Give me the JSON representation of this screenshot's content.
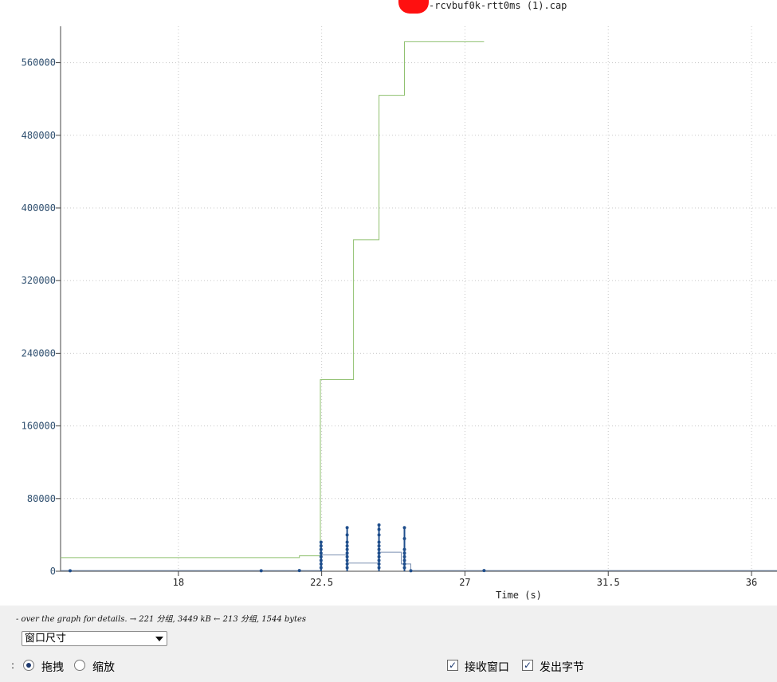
{
  "title_suffix": "-rcvbuf0k-rtt0ms (1).cap",
  "colors": {
    "cumulative": "#8fc06f",
    "window": "#7a8fb0",
    "points": "#1f4e8c",
    "grid": "#c8c8c8",
    "tick_label": "#2f4f6f",
    "background": "#ffffff",
    "panel": "#f0f0f0"
  },
  "chart_data": {
    "type": "line",
    "title": "",
    "xlabel": "Time (s)",
    "ylabel": "",
    "xlim": [
      14.3,
      36.8
    ],
    "ylim": [
      0,
      600000
    ],
    "xticks": [
      18,
      22.5,
      27,
      31.5,
      36
    ],
    "xtick_labels": [
      "18",
      "22.5",
      "27",
      "31.5",
      "36"
    ],
    "yticks": [
      0,
      80000,
      160000,
      240000,
      320000,
      400000,
      480000,
      560000
    ],
    "ytick_labels": [
      "0",
      "80000",
      "160000",
      "240000",
      "320000",
      "400000",
      "480000",
      "560000"
    ],
    "grid": true,
    "series": [
      {
        "role": "cumulative-step",
        "x": [
          14.3,
          21.8,
          21.8,
          22.46,
          22.46,
          23.5,
          23.5,
          24.3,
          24.3,
          25.1,
          25.1,
          27.6
        ],
        "y": [
          15000,
          15000,
          17000,
          17000,
          211000,
          211000,
          365000,
          365000,
          524000,
          524000,
          583000,
          583000
        ]
      },
      {
        "role": "window-step",
        "x": [
          14.3,
          22.5,
          22.5,
          23.3,
          23.3,
          24.3,
          24.3,
          25.0,
          25.0,
          25.3,
          25.3,
          36.8
        ],
        "y": [
          800,
          800,
          18000,
          18000,
          9000,
          9000,
          21000,
          21000,
          8000,
          8000,
          800,
          800
        ]
      },
      {
        "role": "points",
        "x": [
          14.6,
          20.6,
          21.8,
          22.48,
          22.48,
          22.48,
          22.48,
          22.48,
          22.48,
          22.48,
          22.48,
          23.3,
          23.3,
          23.3,
          23.3,
          23.3,
          23.3,
          23.3,
          23.3,
          23.3,
          23.3,
          24.3,
          24.3,
          24.3,
          24.3,
          24.3,
          24.3,
          24.3,
          24.3,
          24.3,
          24.3,
          24.3,
          25.1,
          25.1,
          25.1,
          25.1,
          25.1,
          25.1,
          25.1,
          25.1,
          25.3,
          27.6
        ],
        "y": [
          500,
          500,
          800,
          4000,
          8000,
          12000,
          16000,
          20000,
          24000,
          28000,
          32000,
          4000,
          8000,
          12000,
          16000,
          20000,
          24000,
          28000,
          32000,
          40000,
          48000,
          4000,
          8000,
          12000,
          16000,
          20000,
          24000,
          28000,
          32000,
          40000,
          46000,
          51000,
          4000,
          8000,
          12000,
          16000,
          20000,
          24000,
          36000,
          48000,
          500,
          800
        ]
      }
    ]
  },
  "footer": {
    "hint_text": "- over the graph for details. → 221 分组, 3449 kB ← 213 分组, 1544 bytes",
    "select_value": "窗口尺寸",
    "mouse_left_mark": ":",
    "radio_drag": "拖拽",
    "radio_zoom": "缩放",
    "check_rwnd": "接收窗口",
    "check_bytes_out": "发出字节",
    "check_mark": "✓"
  }
}
